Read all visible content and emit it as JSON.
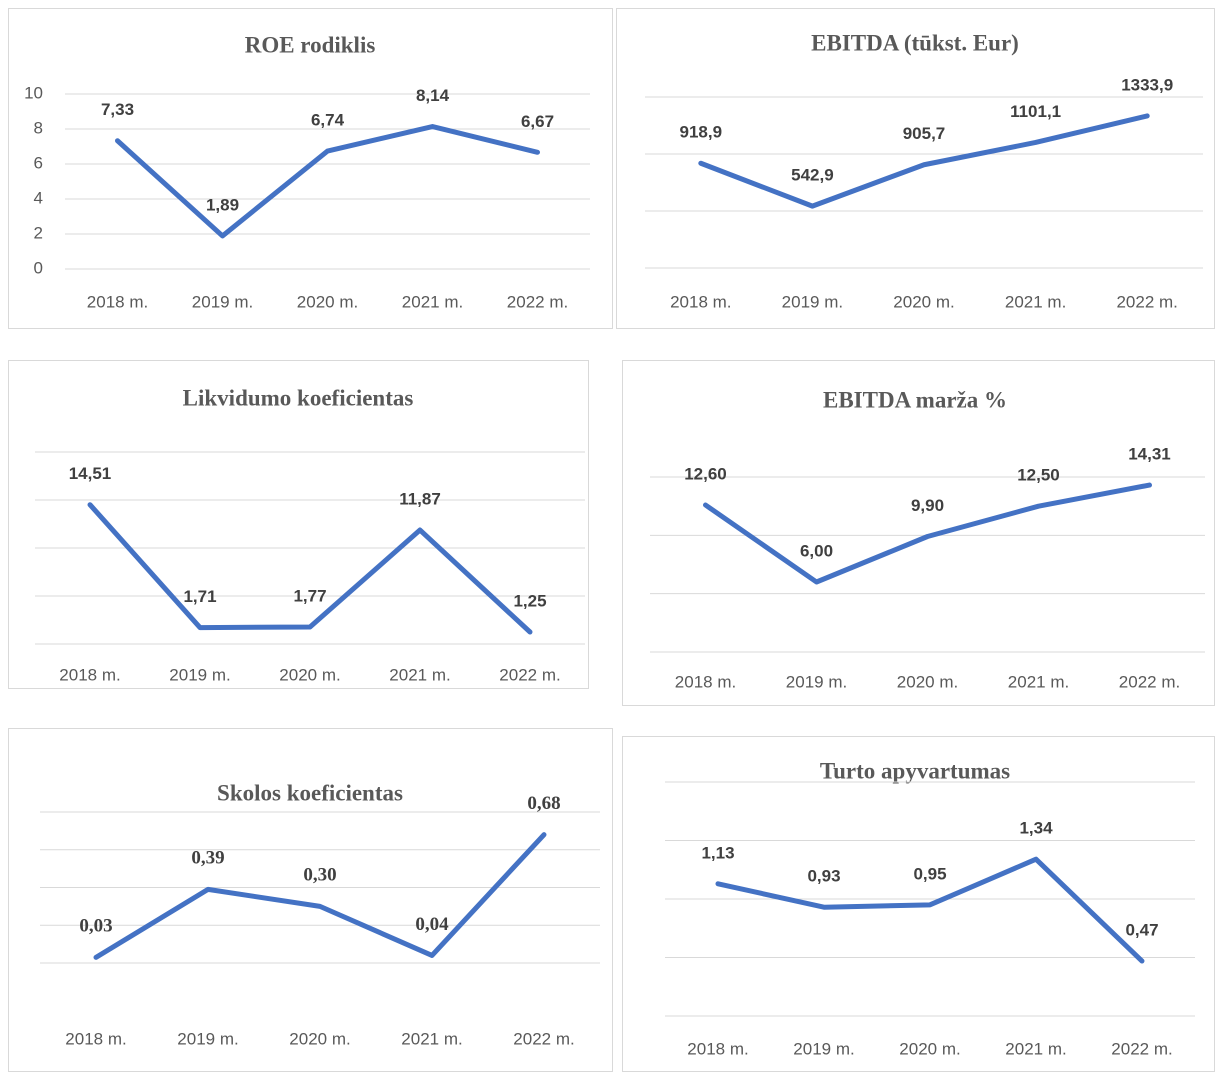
{
  "chart_data": [
    {
      "type": "line",
      "title": "ROE rodiklis",
      "categories": [
        "2018 m.",
        "2019 m.",
        "2020 m.",
        "2021 m.",
        "2022 m."
      ],
      "series": [
        {
          "color": "#4472c4",
          "values": [
            7.33,
            1.89,
            6.74,
            8.14,
            6.67
          ],
          "value_labels": [
            "7,33",
            "1,89",
            "6,74",
            "8,14",
            "6,67"
          ]
        }
      ],
      "ylim": [
        0,
        10
      ],
      "yticks": [
        0,
        2,
        4,
        6,
        8,
        10
      ],
      "ytick_labels": true,
      "grid": true
    },
    {
      "type": "line",
      "title": "EBITDA (tūkst. Eur)",
      "categories": [
        "2018 m.",
        "2019 m.",
        "2020 m.",
        "2021 m.",
        "2022 m."
      ],
      "series": [
        {
          "color": "#4472c4",
          "values": [
            918.9,
            542.9,
            905.7,
            1101.1,
            1333.9
          ],
          "value_labels": [
            "918,9",
            "542,9",
            "905,7",
            "1101,1",
            "1333,9"
          ]
        }
      ],
      "ylim": [
        0,
        1500
      ],
      "yticks": [
        0,
        500,
        1000,
        1500
      ],
      "ytick_labels": false,
      "grid": true
    },
    {
      "type": "line",
      "title": "Likvidumo koeficientas",
      "categories": [
        "2018 m.",
        "2019 m.",
        "2020 m.",
        "2021 m.",
        "2022 m."
      ],
      "series": [
        {
          "color": "#4472c4",
          "values": [
            14.51,
            1.71,
            1.77,
            11.87,
            1.25
          ],
          "value_labels": [
            "14,51",
            "1,71",
            "1,77",
            "11,87",
            "1,25"
          ]
        }
      ],
      "ylim": [
        0,
        20
      ],
      "yticks": [
        0,
        5,
        10,
        15,
        20
      ],
      "ytick_labels": false,
      "grid": true
    },
    {
      "type": "line",
      "title": "EBITDA marža %",
      "categories": [
        "2018 m.",
        "2019 m.",
        "2020 m.",
        "2021 m.",
        "2022 m."
      ],
      "series": [
        {
          "color": "#4472c4",
          "values": [
            12.6,
            6.0,
            9.9,
            12.5,
            14.31
          ],
          "value_labels": [
            "12,60",
            "6,00",
            "9,90",
            "12,50",
            "14,31"
          ]
        }
      ],
      "ylim": [
        0,
        15
      ],
      "yticks": [
        0,
        5,
        10,
        15
      ],
      "ytick_labels": false,
      "grid": true
    },
    {
      "type": "line",
      "title": "Skolos koeficientas",
      "categories": [
        "2018 m.",
        "2019 m.",
        "2020 m.",
        "2021 m.",
        "2022 m."
      ],
      "series": [
        {
          "color": "#4472c4",
          "values": [
            0.03,
            0.39,
            0.3,
            0.04,
            0.68
          ],
          "value_labels": [
            "0,03",
            "0,39",
            "0,30",
            "0,04",
            "0,68"
          ]
        }
      ],
      "ylim": [
        0,
        0.8
      ],
      "yticks": [
        0,
        0.2,
        0.4,
        0.6,
        0.8
      ],
      "ytick_labels": false,
      "grid": true
    },
    {
      "type": "line",
      "title": "Turto apyvartumas",
      "categories": [
        "2018 m.",
        "2019 m.",
        "2020 m.",
        "2021 m.",
        "2022 m."
      ],
      "series": [
        {
          "color": "#4472c4",
          "values": [
            1.13,
            0.93,
            0.95,
            1.34,
            0.47
          ],
          "value_labels": [
            "1,13",
            "0,93",
            "0,95",
            "1,34",
            "0,47"
          ]
        }
      ],
      "ylim": [
        0,
        2
      ],
      "yticks": [
        0,
        0.5,
        1,
        1.5,
        2
      ],
      "ytick_labels": false,
      "grid": true
    }
  ]
}
